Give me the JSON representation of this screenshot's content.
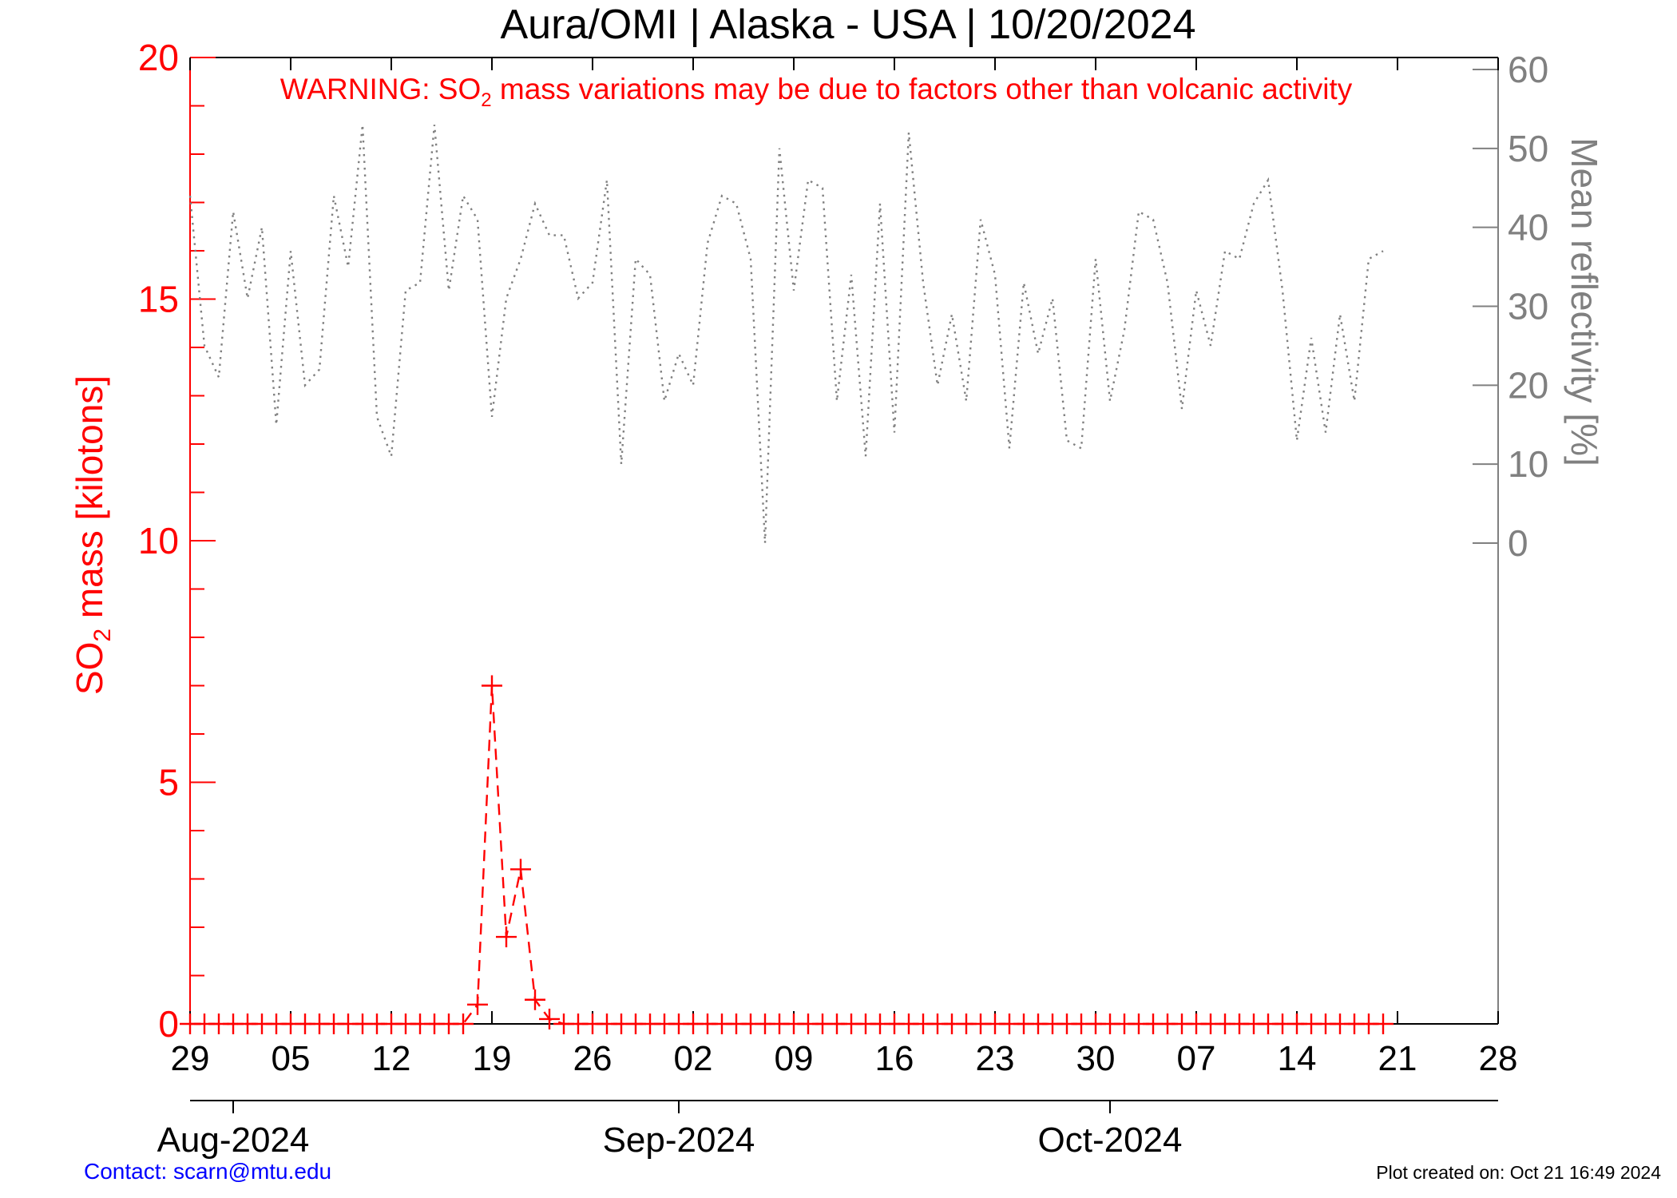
{
  "chart_data": {
    "type": "line",
    "title": "Aura/OMI | Alaska - USA | 10/20/2024",
    "warning": {
      "pre": "WARNING: SO",
      "sub": "2",
      "post": " mass variations may be due to factors other than volcanic activity"
    },
    "x_axis": {
      "range": [
        "2024-07-29",
        "2024-10-28"
      ],
      "tick_labels": [
        "29",
        "05",
        "12",
        "19",
        "26",
        "02",
        "09",
        "16",
        "23",
        "30",
        "07",
        "14",
        "21",
        "28"
      ],
      "month_labels": [
        "Aug-2024",
        "Sep-2024",
        "Oct-2024"
      ],
      "month_starts": [
        "2024-08-01",
        "2024-09-01",
        "2024-10-01"
      ]
    },
    "y_left": {
      "label_pre": "SO",
      "label_sub": "2",
      "label_post": " mass [kilotons]",
      "range": [
        0,
        20
      ],
      "tick_labels": [
        "0",
        "5",
        "10",
        "15",
        "20"
      ],
      "color": "#ff0000"
    },
    "y_right": {
      "label": "Mean reflectivity [%]",
      "range": [
        0,
        60
      ],
      "tick_labels": [
        "0",
        "10",
        "20",
        "30",
        "40",
        "50",
        "60"
      ],
      "color": "#808080"
    },
    "series": [
      {
        "name": "SO2 mass",
        "axis": "left",
        "color": "#ff0000",
        "style": "dashed-with-plus-markers",
        "start_date": "2024-07-29",
        "step_days": 1,
        "values": [
          0,
          0,
          0,
          0,
          0,
          0,
          0,
          0,
          0,
          0,
          0,
          0,
          0,
          0,
          0,
          0,
          0,
          0,
          0,
          0,
          0.4,
          7.0,
          1.8,
          3.2,
          0.5,
          0.1,
          0,
          0,
          0,
          0,
          0,
          0,
          0,
          0,
          0,
          0,
          0,
          0,
          0,
          0,
          0,
          0,
          0,
          0,
          0,
          0,
          0,
          0,
          0,
          0,
          0,
          0,
          0,
          0,
          0,
          0,
          0,
          0,
          0,
          0,
          0,
          0,
          0,
          0,
          0,
          0,
          0,
          0,
          0,
          0,
          0,
          0,
          0,
          0,
          0,
          0,
          0,
          0,
          0,
          0,
          0,
          0,
          0,
          0
        ]
      },
      {
        "name": "Mean reflectivity",
        "axis": "right",
        "color": "#808080",
        "style": "dotted",
        "start_date": "2024-07-29",
        "step_days": 1,
        "values": [
          44,
          25,
          21,
          42,
          31,
          40,
          15,
          37,
          20,
          22,
          44,
          35,
          53,
          16,
          11,
          32,
          33,
          53,
          32,
          44,
          41,
          16,
          31,
          36,
          43,
          39,
          39,
          31,
          33,
          46,
          10,
          36,
          34,
          18,
          24,
          20,
          38,
          44,
          43,
          36,
          0,
          50,
          32,
          46,
          45,
          18,
          34,
          11,
          43,
          14,
          52,
          33,
          20,
          29,
          18,
          41,
          34,
          12,
          33,
          24,
          31,
          13,
          12,
          36,
          18,
          27,
          42,
          41,
          33,
          17,
          32,
          25,
          37,
          36,
          43,
          46,
          32,
          13,
          26,
          14,
          29,
          18,
          36,
          37
        ]
      }
    ]
  },
  "footer": {
    "contact": "Contact: scarn@mtu.edu",
    "created": "Plot created on: Oct 21 16:49 2024"
  }
}
